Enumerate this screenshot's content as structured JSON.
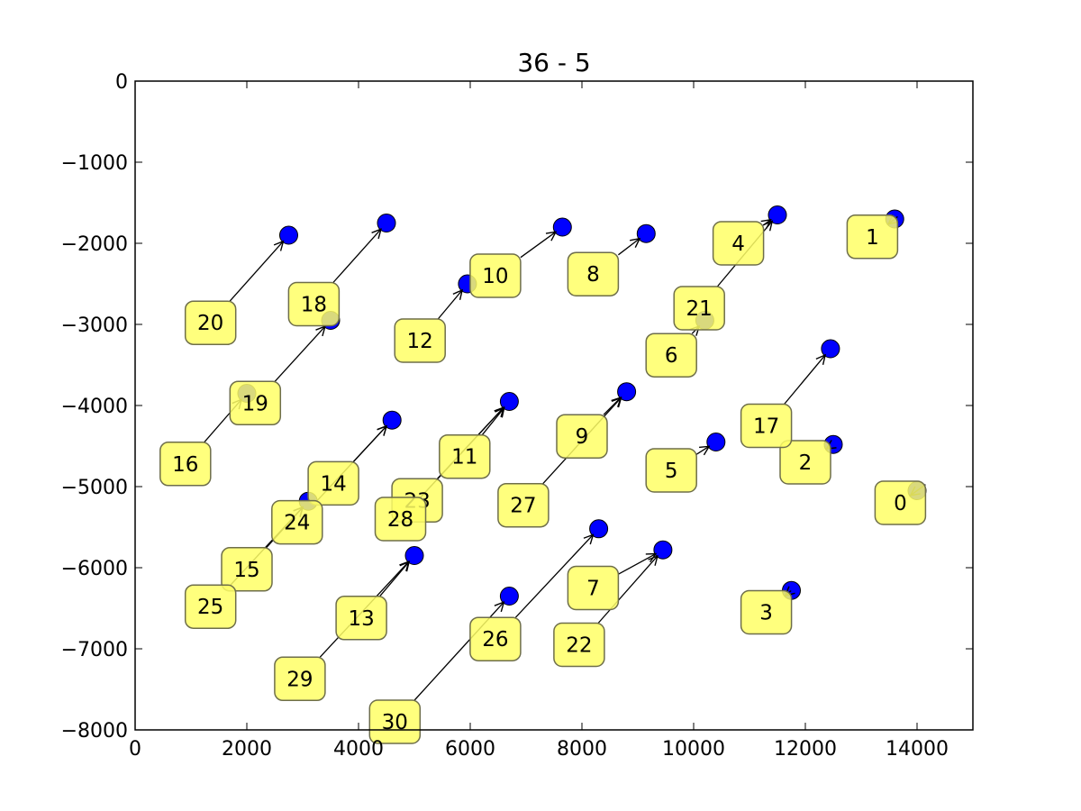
{
  "chart_data": {
    "type": "scatter",
    "title": "36 - 5",
    "xlabel": "",
    "ylabel": "",
    "xlim": [
      0,
      15000
    ],
    "ylim": [
      -8000,
      0
    ],
    "x_ticks": [
      0,
      2000,
      4000,
      6000,
      8000,
      10000,
      12000,
      14000
    ],
    "y_ticks": [
      0,
      -1000,
      -2000,
      -3000,
      -4000,
      -5000,
      -6000,
      -7000,
      -8000
    ],
    "x_tick_labels": [
      "0",
      "2000",
      "4000",
      "6000",
      "8000",
      "10000",
      "12000",
      "14000"
    ],
    "y_tick_labels": [
      "0",
      "−1000",
      "−2000",
      "−3000",
      "−4000",
      "−5000",
      "−6000",
      "−7000",
      "−8000"
    ],
    "grid": false,
    "point_color": "#0000ff",
    "label_box_color": "#ffff66",
    "points": [
      {
        "x": 2750,
        "y": -1900
      },
      {
        "x": 4500,
        "y": -1750
      },
      {
        "x": 5950,
        "y": -2500
      },
      {
        "x": 7650,
        "y": -1800
      },
      {
        "x": 9150,
        "y": -1880
      },
      {
        "x": 11500,
        "y": -1650
      },
      {
        "x": 13600,
        "y": -1700
      },
      {
        "x": 3500,
        "y": -2950
      },
      {
        "x": 2000,
        "y": -3850
      },
      {
        "x": 10200,
        "y": -2950
      },
      {
        "x": 12450,
        "y": -3300
      },
      {
        "x": 4600,
        "y": -4180
      },
      {
        "x": 6700,
        "y": -3950
      },
      {
        "x": 8800,
        "y": -3830
      },
      {
        "x": 10400,
        "y": -4450
      },
      {
        "x": 12500,
        "y": -4480
      },
      {
        "x": 14000,
        "y": -5050
      },
      {
        "x": 3100,
        "y": -5180
      },
      {
        "x": 5000,
        "y": -5850
      },
      {
        "x": 8300,
        "y": -5520
      },
      {
        "x": 9450,
        "y": -5780
      },
      {
        "x": 11750,
        "y": -6280
      },
      {
        "x": 6700,
        "y": -6350
      }
    ],
    "annotations": [
      {
        "label": "0",
        "x": 13700,
        "y": -5200,
        "to_x": 14000,
        "to_y": -5050
      },
      {
        "label": "1",
        "x": 13200,
        "y": -1920,
        "to_x": 13600,
        "to_y": -1700
      },
      {
        "label": "2",
        "x": 12000,
        "y": -4700,
        "to_x": 12500,
        "to_y": -4480
      },
      {
        "label": "3",
        "x": 11300,
        "y": -6550,
        "to_x": 11750,
        "to_y": -6280
      },
      {
        "label": "4",
        "x": 10800,
        "y": -2000,
        "to_x": 11500,
        "to_y": -1650
      },
      {
        "label": "5",
        "x": 9600,
        "y": -4800,
        "to_x": 10400,
        "to_y": -4450
      },
      {
        "label": "6",
        "x": 9600,
        "y": -3380,
        "to_x": 10200,
        "to_y": -2950
      },
      {
        "label": "7",
        "x": 8200,
        "y": -6250,
        "to_x": 9450,
        "to_y": -5780
      },
      {
        "label": "8",
        "x": 8200,
        "y": -2380,
        "to_x": 9150,
        "to_y": -1880
      },
      {
        "label": "9",
        "x": 8000,
        "y": -4380,
        "to_x": 8800,
        "to_y": -3830
      },
      {
        "label": "10",
        "x": 6450,
        "y": -2400,
        "to_x": 7650,
        "to_y": -1800
      },
      {
        "label": "11",
        "x": 5900,
        "y": -4630,
        "to_x": 6700,
        "to_y": -3950
      },
      {
        "label": "12",
        "x": 5100,
        "y": -3200,
        "to_x": 5950,
        "to_y": -2500
      },
      {
        "label": "13",
        "x": 4050,
        "y": -6620,
        "to_x": 5000,
        "to_y": -5850
      },
      {
        "label": "14",
        "x": 3550,
        "y": -4960,
        "to_x": 4600,
        "to_y": -4180
      },
      {
        "label": "15",
        "x": 2000,
        "y": -6020,
        "to_x": 3100,
        "to_y": -5180
      },
      {
        "label": "16",
        "x": 900,
        "y": -4720,
        "to_x": 2000,
        "to_y": -3850
      },
      {
        "label": "17",
        "x": 11300,
        "y": -4250,
        "to_x": 12450,
        "to_y": -3300
      },
      {
        "label": "18",
        "x": 3200,
        "y": -2750,
        "to_x": 4500,
        "to_y": -1750
      },
      {
        "label": "19",
        "x": 2150,
        "y": -3970,
        "to_x": 3500,
        "to_y": -2950
      },
      {
        "label": "20",
        "x": 1350,
        "y": -2980,
        "to_x": 2750,
        "to_y": -1900
      },
      {
        "label": "21",
        "x": 10100,
        "y": -2800,
        "to_x": 11500,
        "to_y": -1650
      },
      {
        "label": "22",
        "x": 7950,
        "y": -6950,
        "to_x": 9450,
        "to_y": -5780
      },
      {
        "label": "23",
        "x": 5050,
        "y": -5170,
        "to_x": 6700,
        "to_y": -3950
      },
      {
        "label": "24",
        "x": 2900,
        "y": -5440,
        "to_x": 4600,
        "to_y": -4180
      },
      {
        "label": "25",
        "x": 1350,
        "y": -6480,
        "to_x": 3100,
        "to_y": -5180
      },
      {
        "label": "26",
        "x": 6450,
        "y": -6880,
        "to_x": 8300,
        "to_y": -5520
      },
      {
        "label": "27",
        "x": 6950,
        "y": -5230,
        "to_x": 8800,
        "to_y": -3830
      },
      {
        "label": "28",
        "x": 4750,
        "y": -5400,
        "to_x": 6700,
        "to_y": -3950
      },
      {
        "label": "29",
        "x": 2950,
        "y": -7370,
        "to_x": 5000,
        "to_y": -5850
      },
      {
        "label": "30",
        "x": 4650,
        "y": -7900,
        "to_x": 6700,
        "to_y": -6350
      }
    ]
  }
}
